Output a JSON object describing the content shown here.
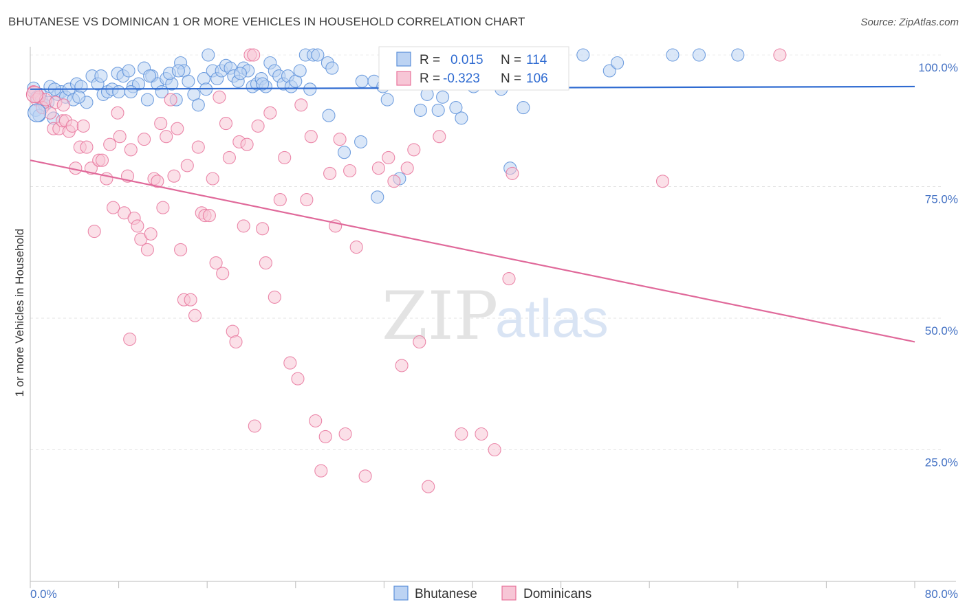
{
  "title": "BHUTANESE VS DOMINICAN 1 OR MORE VEHICLES IN HOUSEHOLD CORRELATION CHART",
  "source": "Source: ZipAtlas.com",
  "watermark": {
    "zip": "ZIP",
    "atlas": "atlas"
  },
  "colors": {
    "blue": "#5b8fd9",
    "blue_fill": "#bcd3f3",
    "pink": "#e8739b",
    "pink_fill": "#f7c6d6",
    "blue_line": "#2f6bd1",
    "pink_line": "#e0699a"
  },
  "legend": {
    "r_label": "R =",
    "n_label": "N =",
    "rows": [
      {
        "r": "0.015",
        "n": "114"
      },
      {
        "r": "-0.323",
        "n": "106"
      }
    ]
  },
  "bottom_legend": [
    "Bhutanese",
    "Dominicans"
  ],
  "chart_data": {
    "type": "scatter",
    "title": "BHUTANESE VS DOMINICAN 1 OR MORE VEHICLES IN HOUSEHOLD CORRELATION CHART",
    "xlabel": "",
    "ylabel": "1 or more Vehicles in Household",
    "xlim": [
      0,
      80
    ],
    "ylim": [
      0,
      105
    ],
    "x_tick_labels": [
      "0.0%",
      "80.0%"
    ],
    "y_tick_labels": [
      "100.0%",
      "75.0%",
      "50.0%",
      "25.0%"
    ],
    "y_ticks": [
      100,
      75,
      50,
      25
    ],
    "grid": true,
    "series": [
      {
        "name": "Bhutanese",
        "trend": {
          "x": [
            0,
            80
          ],
          "y": [
            93.5,
            94.0
          ]
        },
        "points": [
          [
            0.3,
            93.7
          ],
          [
            0.5,
            89.5
          ],
          [
            0.6,
            92.0
          ],
          [
            0.9,
            92.5
          ],
          [
            1.0,
            91.5
          ],
          [
            1.3,
            90.5
          ],
          [
            1.8,
            94.0
          ],
          [
            2.1,
            88.0
          ],
          [
            2.5,
            92.5
          ],
          [
            2.8,
            93.0
          ],
          [
            3.2,
            92.0
          ],
          [
            3.5,
            93.5
          ],
          [
            3.9,
            91.5
          ],
          [
            4.2,
            94.5
          ],
          [
            4.6,
            94.0
          ],
          [
            5.1,
            91.0
          ],
          [
            5.6,
            96.0
          ],
          [
            6.1,
            94.5
          ],
          [
            6.6,
            92.5
          ],
          [
            7.0,
            93.0
          ],
          [
            7.4,
            93.5
          ],
          [
            7.9,
            96.5
          ],
          [
            8.4,
            96.0
          ],
          [
            8.9,
            97.0
          ],
          [
            9.3,
            94.0
          ],
          [
            9.8,
            94.5
          ],
          [
            10.3,
            97.5
          ],
          [
            10.6,
            91.5
          ],
          [
            11.0,
            96.0
          ],
          [
            11.5,
            94.5
          ],
          [
            11.9,
            93.0
          ],
          [
            12.3,
            95.5
          ],
          [
            12.8,
            94.5
          ],
          [
            13.2,
            91.5
          ],
          [
            13.6,
            98.5
          ],
          [
            13.9,
            97.0
          ],
          [
            14.3,
            95.0
          ],
          [
            14.8,
            92.5
          ],
          [
            15.2,
            90.5
          ],
          [
            15.7,
            95.5
          ],
          [
            16.1,
            100.0
          ],
          [
            16.5,
            97.0
          ],
          [
            16.9,
            95.5
          ],
          [
            17.3,
            97.0
          ],
          [
            17.7,
            98.0
          ],
          [
            18.1,
            97.5
          ],
          [
            18.4,
            96.0
          ],
          [
            18.8,
            95.0
          ],
          [
            19.3,
            97.5
          ],
          [
            19.7,
            97.0
          ],
          [
            20.1,
            94.0
          ],
          [
            20.5,
            94.5
          ],
          [
            20.9,
            95.5
          ],
          [
            21.3,
            94.0
          ],
          [
            21.7,
            98.5
          ],
          [
            22.1,
            97.0
          ],
          [
            22.5,
            96.0
          ],
          [
            22.9,
            94.5
          ],
          [
            23.3,
            96.0
          ],
          [
            23.6,
            94.0
          ],
          [
            24.0,
            95.0
          ],
          [
            24.4,
            97.0
          ],
          [
            24.9,
            100.0
          ],
          [
            25.3,
            93.5
          ],
          [
            25.6,
            100.0
          ],
          [
            26.0,
            100.0
          ],
          [
            27.0,
            88.5
          ],
          [
            26.9,
            98.5
          ],
          [
            27.3,
            97.5
          ],
          [
            28.4,
            81.5
          ],
          [
            29.9,
            83.5
          ],
          [
            30.0,
            95.0
          ],
          [
            31.1,
            95.0
          ],
          [
            31.4,
            73.0
          ],
          [
            31.9,
            94.0
          ],
          [
            32.3,
            91.5
          ],
          [
            32.8,
            96.0
          ],
          [
            33.4,
            76.5
          ],
          [
            34.4,
            95.0
          ],
          [
            35.3,
            89.5
          ],
          [
            35.9,
            92.5
          ],
          [
            36.4,
            96.0
          ],
          [
            36.9,
            89.5
          ],
          [
            37.3,
            92.0
          ],
          [
            38.5,
            90.0
          ],
          [
            39.0,
            88.0
          ],
          [
            40.1,
            94.0
          ],
          [
            40.6,
            96.5
          ],
          [
            41.1,
            98.5
          ],
          [
            41.6,
            97.0
          ],
          [
            42.6,
            93.5
          ],
          [
            43.4,
            78.5
          ],
          [
            44.3,
            95.5
          ],
          [
            44.6,
            90.0
          ],
          [
            45.2,
            100.0
          ],
          [
            50.0,
            100.0
          ],
          [
            52.4,
            97.0
          ],
          [
            53.1,
            98.5
          ],
          [
            58.1,
            100.0
          ],
          [
            60.5,
            100.0
          ],
          [
            64.0,
            100.0
          ],
          [
            1.6,
            91.0
          ],
          [
            2.2,
            93.5
          ],
          [
            4.4,
            92.0
          ],
          [
            8.0,
            93.0
          ],
          [
            12.6,
            96.5
          ],
          [
            15.9,
            93.5
          ],
          [
            19.0,
            96.5
          ],
          [
            21.0,
            94.5
          ],
          [
            6.4,
            96.0
          ],
          [
            9.1,
            93.0
          ],
          [
            10.8,
            96.0
          ],
          [
            13.4,
            97.0
          ],
          [
            0.8,
            88.5
          ]
        ]
      },
      {
        "name": "Dominicans",
        "trend": {
          "x": [
            0,
            80
          ],
          "y": [
            80.0,
            45.5
          ]
        },
        "points": [
          [
            0.3,
            93.0
          ],
          [
            0.6,
            91.5
          ],
          [
            0.8,
            92.0
          ],
          [
            1.1,
            90.0
          ],
          [
            1.4,
            91.5
          ],
          [
            1.8,
            89.0
          ],
          [
            2.1,
            86.0
          ],
          [
            2.3,
            91.0
          ],
          [
            2.6,
            86.0
          ],
          [
            2.9,
            87.5
          ],
          [
            3.2,
            87.5
          ],
          [
            3.5,
            85.5
          ],
          [
            3.8,
            86.5
          ],
          [
            4.1,
            78.5
          ],
          [
            4.5,
            82.5
          ],
          [
            4.8,
            86.5
          ],
          [
            5.1,
            82.5
          ],
          [
            5.5,
            78.5
          ],
          [
            5.8,
            66.5
          ],
          [
            6.2,
            80.0
          ],
          [
            6.5,
            80.0
          ],
          [
            6.9,
            76.5
          ],
          [
            7.2,
            83.0
          ],
          [
            7.5,
            71.0
          ],
          [
            7.9,
            89.0
          ],
          [
            8.1,
            84.5
          ],
          [
            8.5,
            70.0
          ],
          [
            8.8,
            77.0
          ],
          [
            9.1,
            82.0
          ],
          [
            9.4,
            69.0
          ],
          [
            9.7,
            67.5
          ],
          [
            10.0,
            65.0
          ],
          [
            10.3,
            84.0
          ],
          [
            10.6,
            63.0
          ],
          [
            10.9,
            66.0
          ],
          [
            11.2,
            76.5
          ],
          [
            11.5,
            76.0
          ],
          [
            11.8,
            87.0
          ],
          [
            12.0,
            71.0
          ],
          [
            12.3,
            84.5
          ],
          [
            12.7,
            91.5
          ],
          [
            13.0,
            77.0
          ],
          [
            13.3,
            86.0
          ],
          [
            13.6,
            63.0
          ],
          [
            13.9,
            53.5
          ],
          [
            14.2,
            79.0
          ],
          [
            14.5,
            53.5
          ],
          [
            14.9,
            50.5
          ],
          [
            15.2,
            82.5
          ],
          [
            15.5,
            70.0
          ],
          [
            15.8,
            69.5
          ],
          [
            16.2,
            69.5
          ],
          [
            16.5,
            76.5
          ],
          [
            16.8,
            60.5
          ],
          [
            17.1,
            92.0
          ],
          [
            17.4,
            58.5
          ],
          [
            17.7,
            87.0
          ],
          [
            18.0,
            80.5
          ],
          [
            18.3,
            47.5
          ],
          [
            18.6,
            45.5
          ],
          [
            18.9,
            83.5
          ],
          [
            19.3,
            67.5
          ],
          [
            19.6,
            83.0
          ],
          [
            19.9,
            100.0
          ],
          [
            20.3,
            29.5
          ],
          [
            20.6,
            86.5
          ],
          [
            21.0,
            67.0
          ],
          [
            21.3,
            60.5
          ],
          [
            21.7,
            89.0
          ],
          [
            22.1,
            54.0
          ],
          [
            22.6,
            72.5
          ],
          [
            23.0,
            80.5
          ],
          [
            23.5,
            41.5
          ],
          [
            24.2,
            38.5
          ],
          [
            24.5,
            90.5
          ],
          [
            25.0,
            72.5
          ],
          [
            25.4,
            84.5
          ],
          [
            25.8,
            30.5
          ],
          [
            26.3,
            21.0
          ],
          [
            26.7,
            27.5
          ],
          [
            27.1,
            77.5
          ],
          [
            27.6,
            67.5
          ],
          [
            28.0,
            84.0
          ],
          [
            28.5,
            28.0
          ],
          [
            28.9,
            78.0
          ],
          [
            29.5,
            63.5
          ],
          [
            30.3,
            20.0
          ],
          [
            31.5,
            78.5
          ],
          [
            32.4,
            80.5
          ],
          [
            32.9,
            76.0
          ],
          [
            33.6,
            41.0
          ],
          [
            34.1,
            78.5
          ],
          [
            34.7,
            82.0
          ],
          [
            35.2,
            45.5
          ],
          [
            36.0,
            18.0
          ],
          [
            37.0,
            84.5
          ],
          [
            39.0,
            28.0
          ],
          [
            40.8,
            28.0
          ],
          [
            42.0,
            25.0
          ],
          [
            43.3,
            57.5
          ],
          [
            43.6,
            77.5
          ],
          [
            57.2,
            76.0
          ],
          [
            67.8,
            100.0
          ],
          [
            3.0,
            90.5
          ],
          [
            9.0,
            46.0
          ],
          [
            20.2,
            100.0
          ]
        ]
      }
    ]
  }
}
